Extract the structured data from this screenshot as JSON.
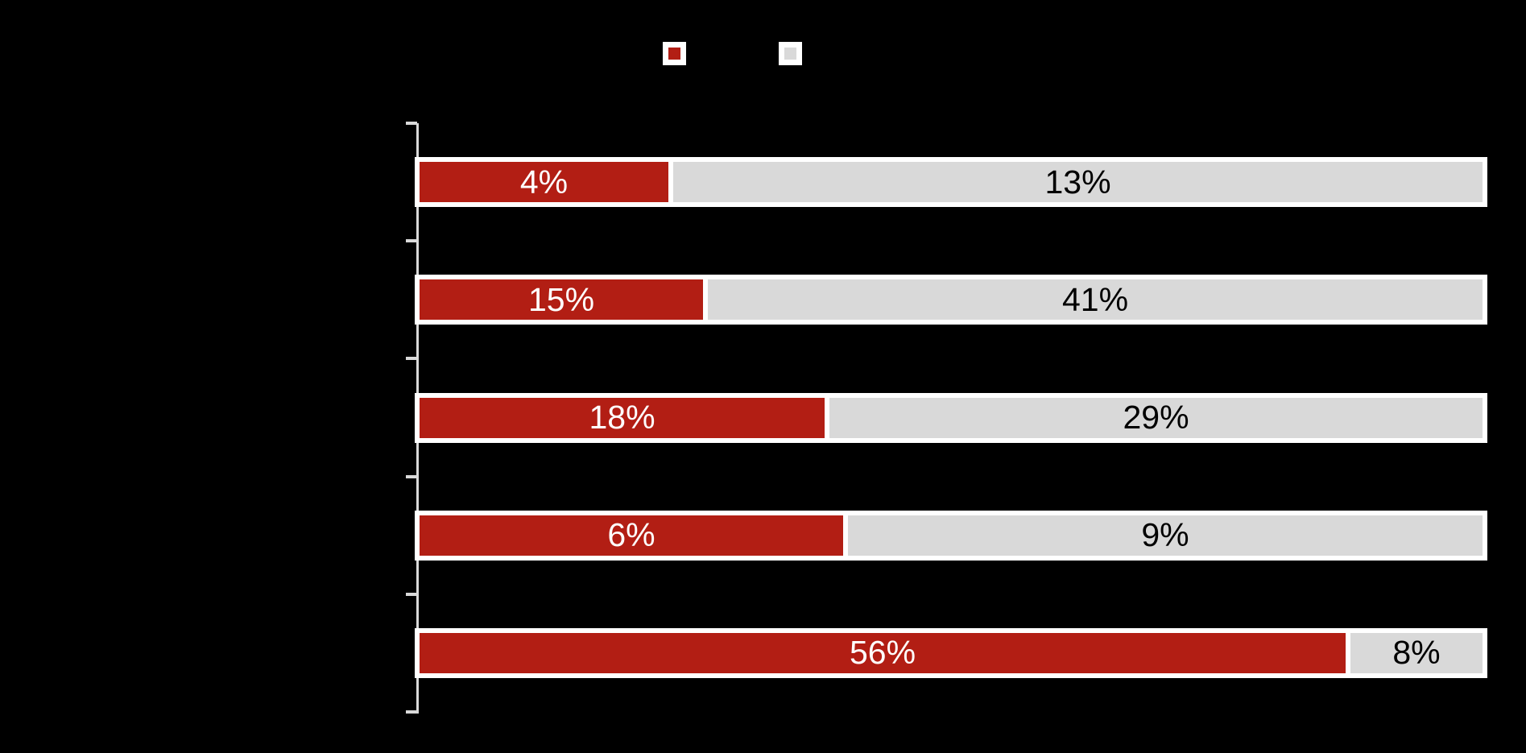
{
  "chart_data": {
    "type": "bar",
    "orientation": "horizontal",
    "stacked": true,
    "bars_normalized_to_full_width": true,
    "grid": false,
    "title": "",
    "xlabel": "",
    "ylabel": "",
    "categories": [
      "",
      "",
      "",
      "",
      ""
    ],
    "series": [
      {
        "name": "",
        "color": "#b21e14",
        "label_color": "#ffffff",
        "values": [
          4,
          15,
          18,
          6,
          56
        ],
        "labels": [
          "4%",
          "15%",
          "18%",
          "6%",
          "56%"
        ]
      },
      {
        "name": "",
        "color": "#d9d9d9",
        "label_color": "#000000",
        "values": [
          13,
          41,
          29,
          9,
          8
        ],
        "labels": [
          "13%",
          "41%",
          "29%",
          "9%",
          "8%"
        ]
      }
    ],
    "legend": {
      "position": "top",
      "items": [
        {
          "label": "",
          "color": "#b21e14"
        },
        {
          "label": "",
          "color": "#d9d9d9"
        }
      ]
    },
    "axis": {
      "color": "#d9d9d9",
      "tick_count": 6
    },
    "colors": {
      "background": "#000000",
      "bar_border": "#ffffff"
    }
  }
}
